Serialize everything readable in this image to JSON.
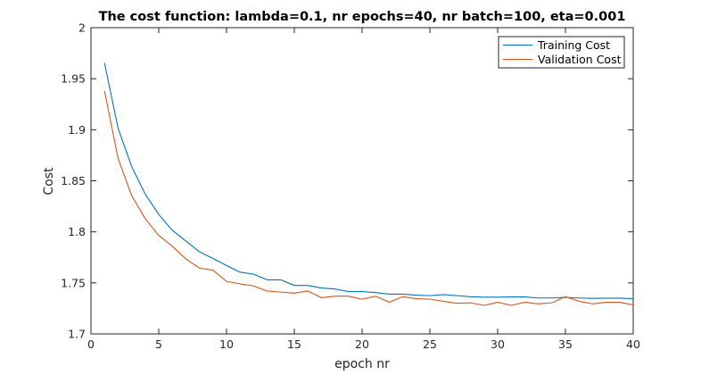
{
  "chart_data": {
    "type": "line",
    "title": "The cost function: lambda=0.1, nr epochs=40, nr batch=100, eta=0.001",
    "xlabel": "epoch nr",
    "ylabel": "Cost",
    "xlim": [
      0,
      40
    ],
    "ylim": [
      1.7,
      2.0
    ],
    "xticks": [
      "0",
      "5",
      "10",
      "15",
      "20",
      "25",
      "30",
      "35",
      "40"
    ],
    "xtick_values": [
      0,
      5,
      10,
      15,
      20,
      25,
      30,
      35,
      40
    ],
    "yticks": [
      "1.7",
      "1.75",
      "1.8",
      "1.85",
      "1.9",
      "1.95",
      "2"
    ],
    "ytick_values": [
      1.7,
      1.75,
      1.8,
      1.85,
      1.9,
      1.95,
      2.0
    ],
    "grid": false,
    "legend_position": "top-right",
    "x": [
      1,
      2,
      3,
      4,
      5,
      6,
      7,
      8,
      9,
      10,
      11,
      12,
      13,
      14,
      15,
      16,
      17,
      18,
      19,
      20,
      21,
      22,
      23,
      24,
      25,
      26,
      27,
      28,
      29,
      30,
      31,
      32,
      33,
      34,
      35,
      36,
      37,
      38,
      39,
      40
    ],
    "series": [
      {
        "name": "Training Cost",
        "color": "#0072bd",
        "values": [
          1.9655,
          1.9015,
          1.864,
          1.837,
          1.817,
          1.8015,
          1.791,
          1.7805,
          1.774,
          1.767,
          1.7605,
          1.7585,
          1.753,
          1.753,
          1.7475,
          1.7475,
          1.745,
          1.744,
          1.7415,
          1.7415,
          1.7405,
          1.739,
          1.739,
          1.738,
          1.7375,
          1.7385,
          1.7375,
          1.7365,
          1.736,
          1.736,
          1.7362,
          1.7362,
          1.7352,
          1.7352,
          1.7358,
          1.7352,
          1.7348,
          1.735,
          1.735,
          1.7345
        ]
      },
      {
        "name": "Validation Cost",
        "color": "#d95319",
        "values": [
          1.938,
          1.872,
          1.8355,
          1.813,
          1.7965,
          1.786,
          1.7735,
          1.7645,
          1.7625,
          1.7515,
          1.749,
          1.747,
          1.742,
          1.741,
          1.74,
          1.742,
          1.7355,
          1.737,
          1.737,
          1.734,
          1.737,
          1.731,
          1.7365,
          1.7345,
          1.734,
          1.732,
          1.73,
          1.7305,
          1.728,
          1.731,
          1.728,
          1.731,
          1.7295,
          1.7305,
          1.7365,
          1.732,
          1.7295,
          1.731,
          1.731,
          1.7285
        ]
      }
    ]
  }
}
